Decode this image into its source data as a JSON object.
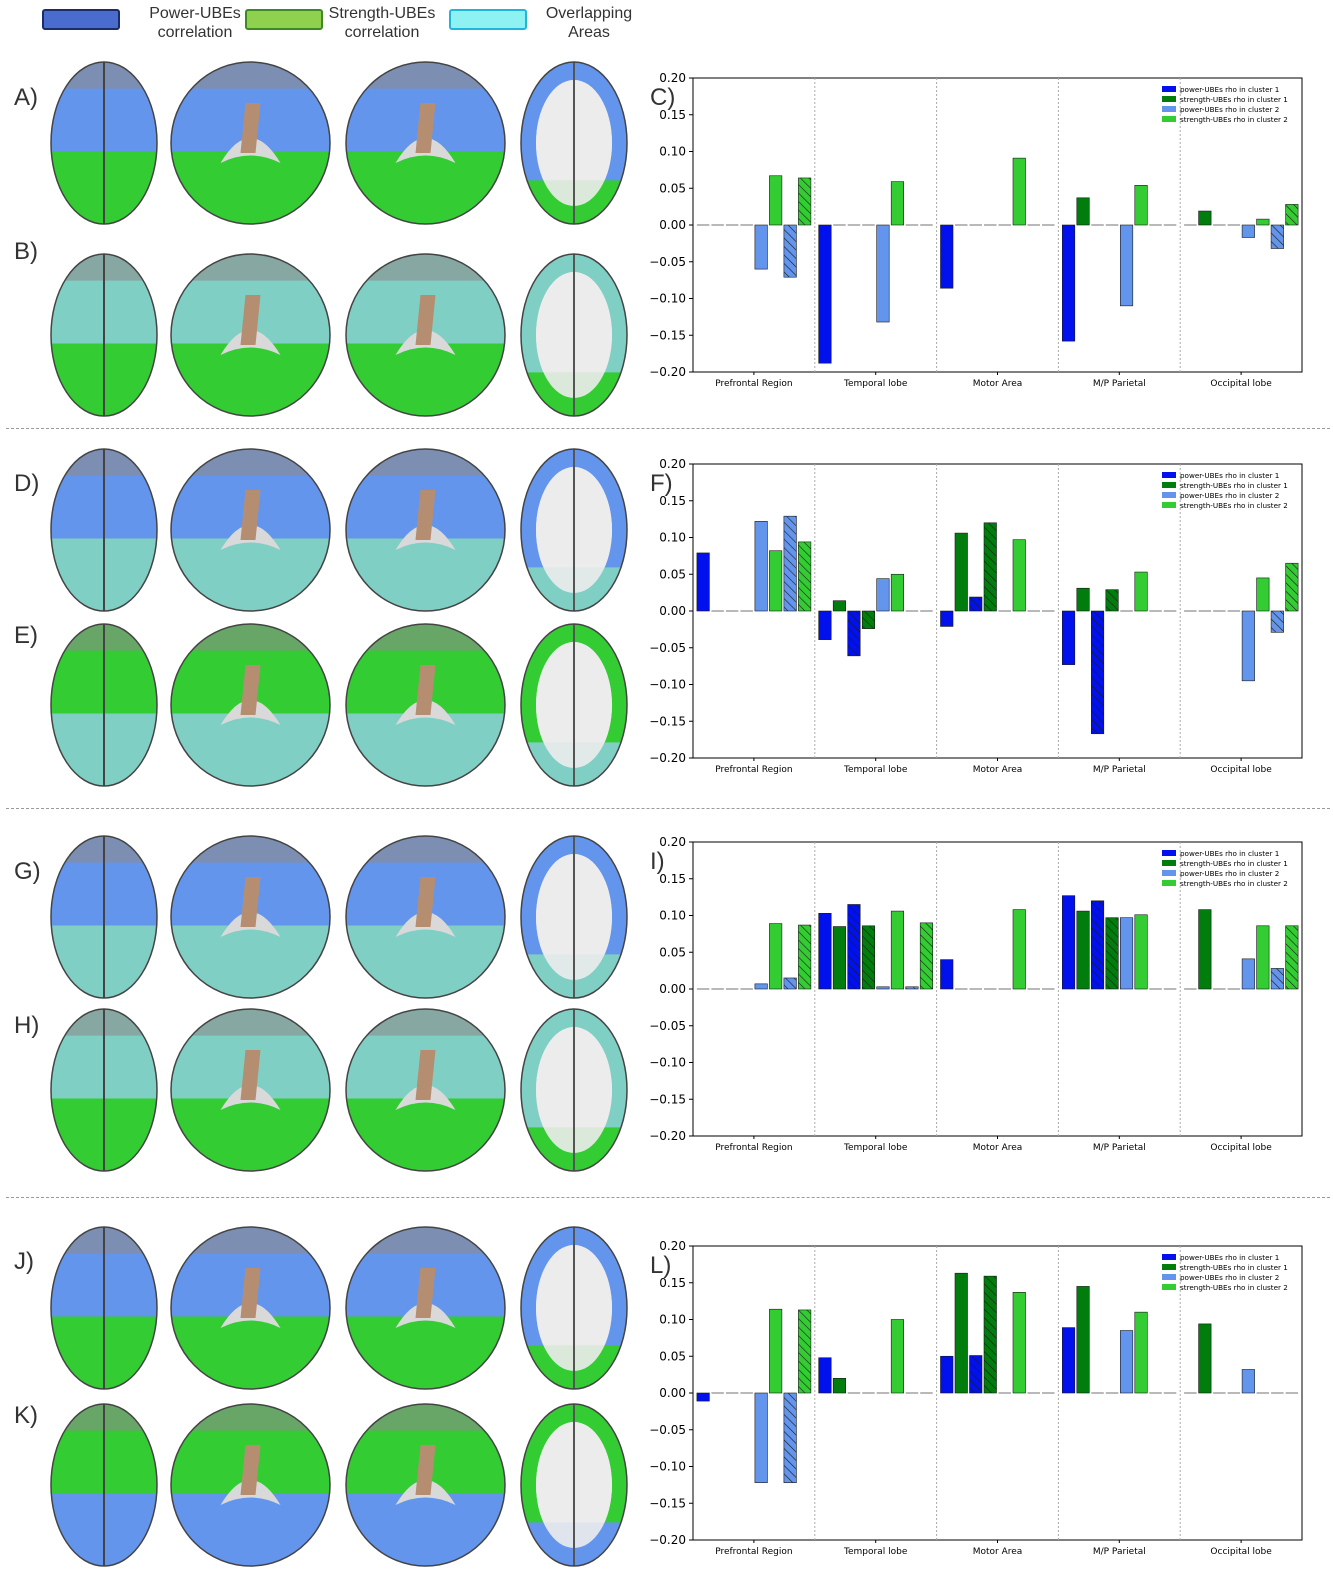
{
  "legend": {
    "items": [
      {
        "label_line1": "Power-UBEs",
        "label_line2": "correlation",
        "fill": "#4a6ccf",
        "border": "#1b2c6b"
      },
      {
        "label_line1": "Strength-UBEs",
        "label_line2": "correlation",
        "fill": "#8fd14f",
        "border": "#3e8a22"
      },
      {
        "label_line1": "Overlapping",
        "label_line2": "Areas",
        "fill": "#8ef2f2",
        "border": "#1fb7d9"
      }
    ]
  },
  "row_labels": [
    "A)",
    "B)",
    "D)",
    "E)",
    "G)",
    "H)",
    "J)",
    "K)"
  ],
  "chart_labels": [
    "C)",
    "F)",
    "I)",
    "L)"
  ],
  "colors": {
    "power1": "#0011ee",
    "strength1": "#007d0d",
    "power2": "#6495ed",
    "strength2": "#33cc33",
    "overlap": "#7fcfc4",
    "gray": "#8a8a8a"
  },
  "chart_data": [
    {
      "panel": "C)",
      "type": "bar",
      "categories": [
        "Prefrontal Region",
        "Temporal lobe",
        "Motor Area",
        "M/P Parietal",
        "Occipital lobe"
      ],
      "series": [
        {
          "name": "power-UBEs rho in cluster 1",
          "values": [
            0.0,
            -0.188,
            -0.086,
            -0.158,
            0.0
          ]
        },
        {
          "name": "strength-UBEs rho in cluster 1",
          "values": [
            0.0,
            0.0,
            0.0,
            0.037,
            0.019
          ]
        },
        {
          "name": "power-UBEs rho in cluster 2",
          "values": [
            -0.06,
            -0.132,
            0.0,
            -0.11,
            -0.017
          ]
        },
        {
          "name": "strength-UBEs rho in cluster 2",
          "values": [
            0.067,
            0.059,
            0.091,
            0.054,
            0.008
          ]
        }
      ],
      "hatched": [
        {
          "name": "power-UBEs rho in cluster 2",
          "values": [
            -0.071,
            0.0,
            0.0,
            0.0,
            -0.032
          ]
        },
        {
          "name": "strength-UBEs rho in cluster 2",
          "values": [
            0.064,
            0.0,
            0.0,
            0.0,
            0.028
          ]
        }
      ],
      "ylim": [
        -0.2,
        0.2
      ],
      "yticks": [
        "0.20",
        "0.15",
        "0.10",
        "0.05",
        "0.00",
        "−0.05",
        "−0.10",
        "−0.15",
        "−0.20"
      ],
      "legend_position": "top-right"
    },
    {
      "panel": "F)",
      "type": "bar",
      "categories": [
        "Prefrontal Region",
        "Temporal lobe",
        "Motor Area",
        "M/P Parietal",
        "Occipital lobe"
      ],
      "series": [
        {
          "name": "power-UBEs rho in cluster 1",
          "values": [
            0.079,
            -0.039,
            -0.021,
            -0.073,
            0.0
          ]
        },
        {
          "name": "strength-UBEs rho in cluster 1",
          "values": [
            0.0,
            0.014,
            0.106,
            0.031,
            0.0
          ]
        },
        {
          "name": "power-UBEs rho in cluster 2",
          "values": [
            0.122,
            0.044,
            0.0,
            0.0,
            -0.095
          ]
        },
        {
          "name": "strength-UBEs rho in cluster 2",
          "values": [
            0.082,
            0.05,
            0.097,
            0.053,
            0.045
          ]
        }
      ],
      "hatched": [
        {
          "name": "power-UBEs rho in cluster 1",
          "values": [
            0.0,
            -0.061,
            0.019,
            -0.167,
            0.0
          ]
        },
        {
          "name": "strength-UBEs rho in cluster 1",
          "values": [
            0.0,
            -0.024,
            0.12,
            0.029,
            0.0
          ]
        },
        {
          "name": "power-UBEs rho in cluster 2",
          "values": [
            0.129,
            0.0,
            0.0,
            0.0,
            -0.029
          ]
        },
        {
          "name": "strength-UBEs rho in cluster 2",
          "values": [
            0.094,
            0.0,
            0.0,
            0.0,
            0.065
          ]
        }
      ],
      "ylim": [
        -0.2,
        0.2
      ],
      "yticks": [
        "0.20",
        "0.15",
        "0.10",
        "0.05",
        "0.00",
        "−0.05",
        "−0.10",
        "−0.15",
        "−0.20"
      ],
      "legend_position": "top-right"
    },
    {
      "panel": "I)",
      "type": "bar",
      "categories": [
        "Prefrontal Region",
        "Temporal lobe",
        "Motor Area",
        "M/P Parietal",
        "Occipital lobe"
      ],
      "series": [
        {
          "name": "power-UBEs rho in cluster 1",
          "values": [
            0.0,
            0.103,
            0.04,
            0.127,
            0.0
          ]
        },
        {
          "name": "strength-UBEs rho in cluster 1",
          "values": [
            0.0,
            0.085,
            0.0,
            0.106,
            0.108
          ]
        },
        {
          "name": "power-UBEs rho in cluster 2",
          "values": [
            0.007,
            0.003,
            0.0,
            0.097,
            0.041
          ]
        },
        {
          "name": "strength-UBEs rho in cluster 2",
          "values": [
            0.089,
            0.106,
            0.108,
            0.101,
            0.086
          ]
        }
      ],
      "hatched": [
        {
          "name": "power-UBEs rho in cluster 1",
          "values": [
            0.0,
            0.115,
            0.0,
            0.12,
            0.0
          ]
        },
        {
          "name": "strength-UBEs rho in cluster 1",
          "values": [
            0.0,
            0.086,
            0.0,
            0.097,
            0.0
          ]
        },
        {
          "name": "power-UBEs rho in cluster 2",
          "values": [
            0.015,
            0.003,
            0.0,
            0.0,
            0.028
          ]
        },
        {
          "name": "strength-UBEs rho in cluster 2",
          "values": [
            0.087,
            0.09,
            0.0,
            0.0,
            0.086
          ]
        }
      ],
      "ylim": [
        -0.2,
        0.2
      ],
      "yticks": [
        "0.20",
        "0.15",
        "0.10",
        "0.05",
        "0.00",
        "−0.05",
        "−0.10",
        "−0.15",
        "−0.20"
      ],
      "legend_position": "top-right"
    },
    {
      "panel": "L)",
      "type": "bar",
      "categories": [
        "Prefrontal Region",
        "Temporal lobe",
        "Motor Area",
        "M/P Parietal",
        "Occipital lobe"
      ],
      "series": [
        {
          "name": "power-UBEs rho in cluster 1",
          "values": [
            -0.011,
            0.048,
            0.05,
            0.089,
            0.0
          ]
        },
        {
          "name": "strength-UBEs rho in cluster 1",
          "values": [
            0.0,
            0.02,
            0.163,
            0.145,
            0.094
          ]
        },
        {
          "name": "power-UBEs rho in cluster 2",
          "values": [
            -0.122,
            0.0,
            0.0,
            0.085,
            0.032
          ]
        },
        {
          "name": "strength-UBEs rho in cluster 2",
          "values": [
            0.114,
            0.1,
            0.137,
            0.11,
            0.0
          ]
        }
      ],
      "hatched": [
        {
          "name": "power-UBEs rho in cluster 1",
          "values": [
            0.0,
            0.0,
            0.051,
            0.0,
            0.0
          ]
        },
        {
          "name": "strength-UBEs rho in cluster 1",
          "values": [
            0.0,
            0.0,
            0.159,
            0.0,
            0.0
          ]
        },
        {
          "name": "power-UBEs rho in cluster 2",
          "values": [
            -0.122,
            0.0,
            0.0,
            0.0,
            0.0
          ]
        },
        {
          "name": "strength-UBEs rho in cluster 2",
          "values": [
            0.113,
            0.0,
            0.0,
            0.0,
            0.0
          ]
        }
      ],
      "ylim": [
        -0.2,
        0.2
      ],
      "yticks": [
        "0.20",
        "0.15",
        "0.10",
        "0.05",
        "0.00",
        "−0.05",
        "−0.10",
        "−0.15",
        "−0.20"
      ],
      "legend_position": "top-right"
    }
  ]
}
